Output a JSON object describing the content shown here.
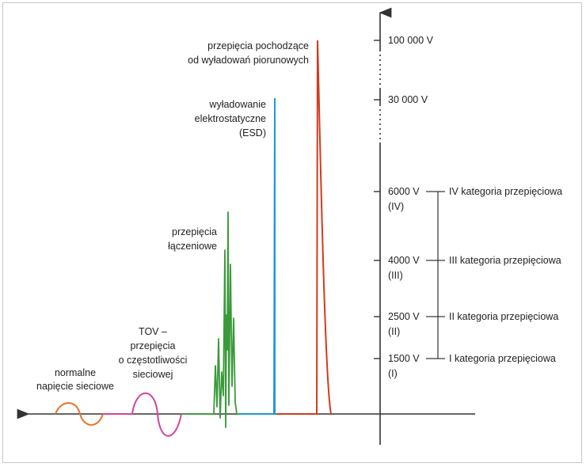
{
  "colors": {
    "axis": "#333333",
    "normal": "#e8732a",
    "tov": "#d4459a",
    "switching": "#3a9a3a",
    "esd": "#1f9ad0",
    "lightning": "#d23b1e"
  },
  "labels": {
    "normal": [
      "normalne",
      "napięcie sieciowe"
    ],
    "tov": [
      "TOV –",
      "przepięcia",
      "o częstotliwości",
      "sieciowej"
    ],
    "switching": [
      "przepięcia",
      "łączeniowe"
    ],
    "esd": [
      "wyładowanie",
      "elektrostatyczne",
      "(ESD)"
    ],
    "lightning": [
      "przepięcia pochodzące",
      "od wyładowań piorunowych"
    ]
  },
  "ticks": [
    {
      "value": "100 000 V",
      "roman": ""
    },
    {
      "value": "30 000 V",
      "roman": ""
    },
    {
      "value": "6000 V",
      "roman": "(IV)"
    },
    {
      "value": "4000 V",
      "roman": "(III)"
    },
    {
      "value": "2500 V",
      "roman": "(II)"
    },
    {
      "value": "1500 V",
      "roman": "(I)"
    }
  ],
  "categories": [
    "IV kategoria przepięciowa",
    "III kategoria przepięciowa",
    "II kategoria przepięciowa",
    "I kategoria przepięciowa"
  ]
}
